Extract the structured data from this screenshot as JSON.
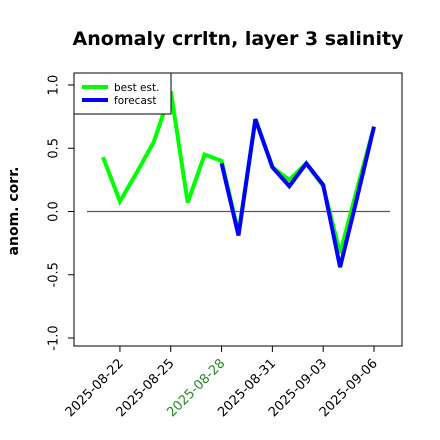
{
  "chart_data": {
    "type": "line",
    "title": "Anomaly crrltn, layer 3 salinity",
    "xlabel": "",
    "ylabel": "anom. corr.",
    "ylim": [
      -1.0,
      1.0
    ],
    "yticks": [
      "-1.0",
      "-0.5",
      "0.0",
      "0.5",
      "1.0"
    ],
    "ytick_values": [
      -1.0,
      -0.5,
      0.0,
      0.5,
      1.0
    ],
    "x": [
      "2025-08-21",
      "2025-08-22",
      "2025-08-23",
      "2025-08-24",
      "2025-08-25",
      "2025-08-26",
      "2025-08-27",
      "2025-08-28",
      "2025-08-29",
      "2025-08-30",
      "2025-08-31",
      "2025-09-01",
      "2025-09-02",
      "2025-09-03",
      "2025-09-04",
      "2025-09-05",
      "2025-09-06"
    ],
    "xtick_labels": [
      "2025-08-22",
      "2025-08-25",
      "2025-08-28",
      "2025-08-31",
      "2025-09-03",
      "2025-09-06"
    ],
    "xtick_highlight": "2025-08-28",
    "xtick_colors": {
      "default": "#000000",
      "highlight": "#228b22"
    },
    "reference_line": 0.0,
    "series": [
      {
        "name": "best est.",
        "color": "#00ff00",
        "values": [
          0.43,
          0.08,
          0.31,
          0.55,
          0.95,
          0.07,
          0.45,
          0.4,
          -0.17,
          0.73,
          0.35,
          0.25,
          0.38,
          0.2,
          -0.33,
          0.18,
          0.67
        ]
      },
      {
        "name": "forecast",
        "color": "#0000ff",
        "values": [
          null,
          null,
          null,
          null,
          null,
          null,
          null,
          0.38,
          -0.19,
          0.73,
          0.35,
          0.2,
          0.38,
          0.21,
          -0.44,
          0.11,
          0.67
        ]
      }
    ],
    "legend_position": "top-left",
    "grid": false
  }
}
